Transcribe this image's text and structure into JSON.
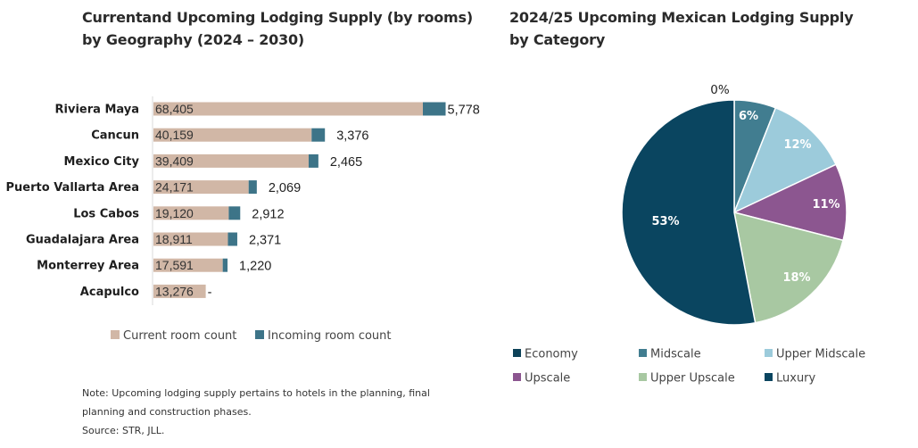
{
  "colors": {
    "current": "#d1b7a6",
    "incoming": "#3d7488",
    "economy": "#0d4258",
    "midscale": "#417d90",
    "upper_midscale": "#9ccbdb",
    "upscale": "#8c5690",
    "upper_upscale": "#a8c8a2",
    "luxury": "#0a4560"
  },
  "chart_data": [
    {
      "type": "bar",
      "orientation": "horizontal",
      "stacked": true,
      "title_line1": "Currentand Upcoming Lodging Supply (by rooms)",
      "title_line2": "by Geography (2024 – 2030)",
      "categories": [
        "Riviera Maya",
        "Cancun",
        "Mexico City",
        "Puerto Vallarta Area",
        "Los Cabos",
        "Guadalajara Area",
        "Monterrey Area",
        "Acapulco"
      ],
      "series": [
        {
          "name": "Current room count",
          "values": [
            68405,
            40159,
            39409,
            24171,
            19120,
            18911,
            17591,
            13276
          ],
          "labels": [
            "68,405",
            "40,159",
            "39,409",
            "24,171",
            "19,120",
            "18,911",
            "17,591",
            "13,276"
          ]
        },
        {
          "name": "Incoming room count",
          "values": [
            5778,
            3376,
            2465,
            2069,
            2912,
            2371,
            1220,
            0
          ],
          "labels": [
            "5,778",
            "3,376",
            "2,465",
            "2,069",
            "2,912",
            "2,371",
            "1,220",
            "-"
          ]
        }
      ],
      "legend_position": "bottom"
    },
    {
      "type": "pie",
      "title_line1": "2024/25 Upcoming Mexican Lodging Supply",
      "title_line2": "by Category",
      "slices": [
        {
          "name": "Economy",
          "value": 0,
          "label": "0%",
          "color_key": "economy"
        },
        {
          "name": "Midscale",
          "value": 6,
          "label": "6%",
          "color_key": "midscale"
        },
        {
          "name": "Upper Midscale",
          "value": 12,
          "label": "12%",
          "color_key": "upper_midscale"
        },
        {
          "name": "Upscale",
          "value": 11,
          "label": "11%",
          "color_key": "upscale"
        },
        {
          "name": "Upper Upscale",
          "value": 18,
          "label": "18%",
          "color_key": "upper_upscale"
        },
        {
          "name": "Luxury",
          "value": 53,
          "label": "53%",
          "color_key": "luxury"
        }
      ],
      "legend_position": "bottom"
    }
  ],
  "note": {
    "line1": "Note: Upcoming lodging supply pertains to hotels in the planning, final",
    "line2": "planning and construction phases.",
    "line3": "Source: STR, JLL."
  }
}
